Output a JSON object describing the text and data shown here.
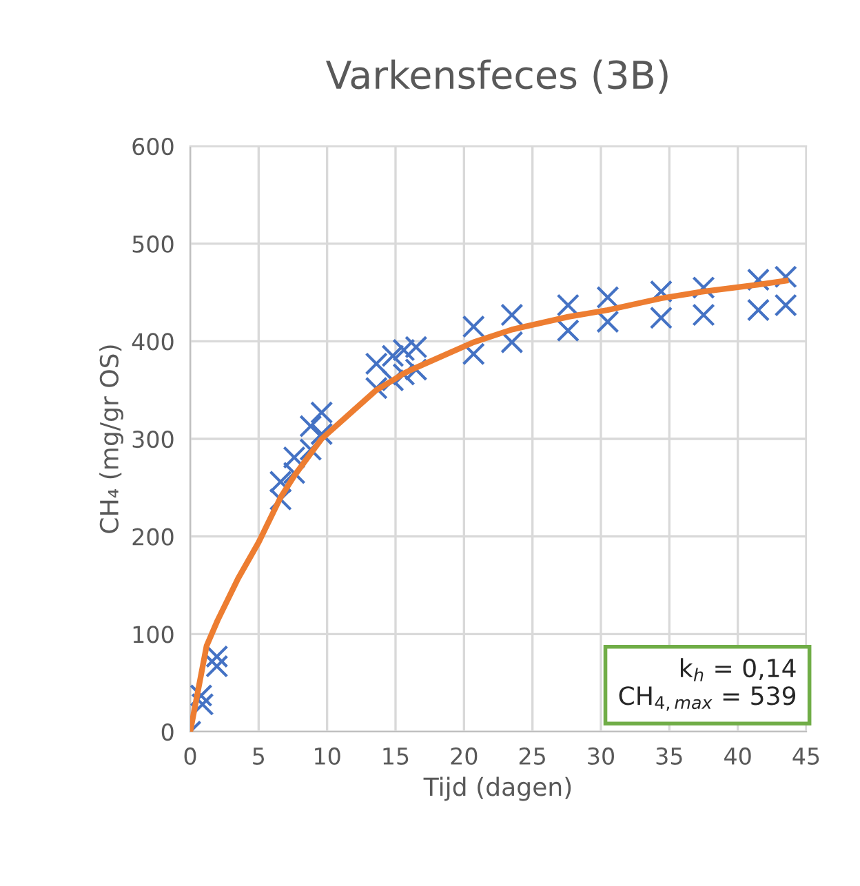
{
  "chart_data": {
    "type": "scatter",
    "title": "Varkensfeces (3B)",
    "xlabel": "Tijd (dagen)",
    "ylabel": "CH₄ (mg/gr OS)",
    "xlim": [
      0,
      45
    ],
    "xticks": [
      0,
      5,
      10,
      15,
      20,
      25,
      30,
      35,
      40,
      45
    ],
    "ylim": [
      0,
      600
    ],
    "yticks": [
      0,
      100,
      200,
      300,
      400,
      500,
      600
    ],
    "grid": true,
    "series": [
      {
        "color": "#4472c4",
        "marker": "cross",
        "x": [
          0,
          0.8,
          0.9,
          1.95,
          1.95,
          6.6,
          6.6,
          7.6,
          7.6,
          8.8,
          8.8,
          9.6,
          9.6,
          13.6,
          13.6,
          14.8,
          14.8,
          15.6,
          15.6,
          16.5,
          16.5,
          20.7,
          20.7,
          23.5,
          23.5,
          27.6,
          27.6,
          30.5,
          30.5,
          34.4,
          34.4,
          37.5,
          37.5,
          41.5,
          41.5,
          43.5,
          43.5
        ],
        "values": [
          0,
          37,
          28,
          77,
          67,
          256,
          238,
          281,
          265,
          313,
          289,
          327,
          305,
          377,
          352,
          385,
          360,
          391,
          366,
          394,
          371,
          415,
          387,
          427,
          399,
          437,
          411,
          445,
          420,
          451,
          424,
          455,
          427,
          463,
          432,
          466,
          437
        ]
      },
      {
        "type": "line",
        "color": "#ed7d31",
        "marker": "none",
        "line_style": "solid",
        "x": [
          0,
          1.2,
          2,
          3.5,
          5,
          6.6,
          7.6,
          8.8,
          9.6,
          13.6,
          14.8,
          15.6,
          16.5,
          20.7,
          23.5,
          27.6,
          30.5,
          34.4,
          37.5,
          41.5,
          43.5
        ],
        "values": [
          0,
          88,
          114,
          157,
          194,
          240,
          262,
          285,
          300,
          350,
          360,
          367,
          373,
          399,
          412,
          425,
          432,
          444,
          451,
          458,
          462
        ]
      }
    ],
    "annotations": [
      "k$_{h}$ = 0,14",
      "CH$_{4,max}$ = 539"
    ]
  }
}
